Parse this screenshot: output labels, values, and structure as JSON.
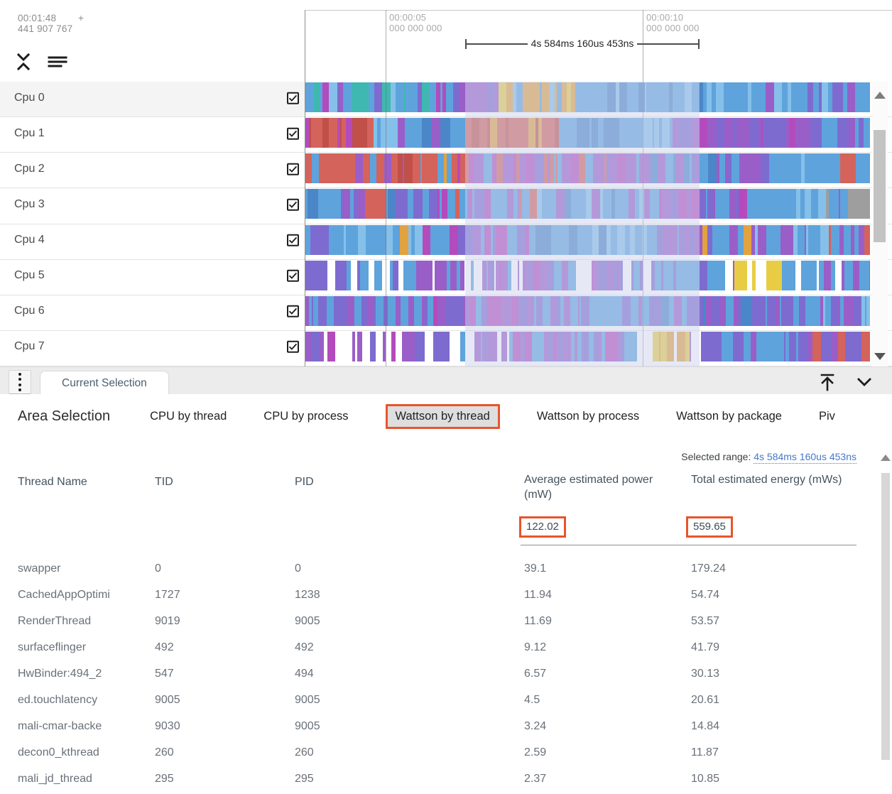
{
  "timeline": {
    "cursor_time_primary": "00:01:48",
    "cursor_plus": "+",
    "cursor_time_secondary": "441 907 767",
    "ticks": [
      {
        "time": "00:00:05",
        "subtime": "000 000 000"
      },
      {
        "time": "00:00:10",
        "subtime": "000 000 000"
      }
    ],
    "measurement_label": "4s 584ms 160us 453ns"
  },
  "tracks": {
    "cpus": [
      {
        "label": "Cpu 0",
        "checked": true
      },
      {
        "label": "Cpu 1",
        "checked": true
      },
      {
        "label": "Cpu 2",
        "checked": true
      },
      {
        "label": "Cpu 3",
        "checked": true
      },
      {
        "label": "Cpu 4",
        "checked": true
      },
      {
        "label": "Cpu 5",
        "checked": true
      },
      {
        "label": "Cpu 6",
        "checked": true
      },
      {
        "label": "Cpu 7",
        "checked": true
      }
    ],
    "palette": {
      "b": "#5ea3dc",
      "l": "#85c0ea",
      "d": "#4a86c8",
      "p": "#9a5ec8",
      "v": "#7e6bd0",
      "m": "#b44bbd",
      "r": "#d4635c",
      "s": "#c05048",
      "o": "#e2a23f",
      "t": "#3eb8b0",
      "y": "#e8cd44",
      "n": "#9e9e9e",
      "g": "#8bc34a",
      "w": "#ffffff"
    }
  },
  "tab_strip": {
    "active_tab": "Current Selection"
  },
  "details": {
    "title": "Area Selection",
    "tabs": [
      {
        "label": "CPU by thread",
        "selected": false
      },
      {
        "label": "CPU by process",
        "selected": false
      },
      {
        "label": "Wattson by thread",
        "selected": true
      },
      {
        "label": "Wattson by process",
        "selected": false
      },
      {
        "label": "Wattson by package",
        "selected": false
      },
      {
        "label": "Piv",
        "selected": false
      }
    ],
    "selected_range": {
      "label": "Selected range:",
      "value": "4s 584ms 160us 453ns"
    },
    "table": {
      "columns": [
        "Thread Name",
        "TID",
        "PID",
        "Average estimated power (mW)",
        "Total estimated energy (mWs)"
      ],
      "summary": {
        "avg_power": "122.02",
        "total_energy": "559.65"
      },
      "rows": [
        {
          "thread": "swapper",
          "tid": "0",
          "pid": "0",
          "avg_power": "39.1",
          "total_energy": "179.24"
        },
        {
          "thread": "CachedAppOptimi",
          "tid": "1727",
          "pid": "1238",
          "avg_power": "11.94",
          "total_energy": "54.74"
        },
        {
          "thread": "RenderThread",
          "tid": "9019",
          "pid": "9005",
          "avg_power": "11.69",
          "total_energy": "53.57"
        },
        {
          "thread": "surfaceflinger",
          "tid": "492",
          "pid": "492",
          "avg_power": "9.12",
          "total_energy": "41.79"
        },
        {
          "thread": "HwBinder:494_2",
          "tid": "547",
          "pid": "494",
          "avg_power": "6.57",
          "total_energy": "30.13"
        },
        {
          "thread": "ed.touchlatency",
          "tid": "9005",
          "pid": "9005",
          "avg_power": "4.5",
          "total_energy": "20.61"
        },
        {
          "thread": "mali-cmar-backe",
          "tid": "9030",
          "pid": "9005",
          "avg_power": "3.24",
          "total_energy": "14.84"
        },
        {
          "thread": "decon0_kthread",
          "tid": "260",
          "pid": "260",
          "avg_power": "2.59",
          "total_energy": "11.87"
        },
        {
          "thread": "mali_jd_thread",
          "tid": "295",
          "pid": "295",
          "avg_power": "2.37",
          "total_energy": "10.85"
        }
      ]
    }
  },
  "colors": {
    "accent": "#e8542c",
    "link": "#4677c8"
  }
}
